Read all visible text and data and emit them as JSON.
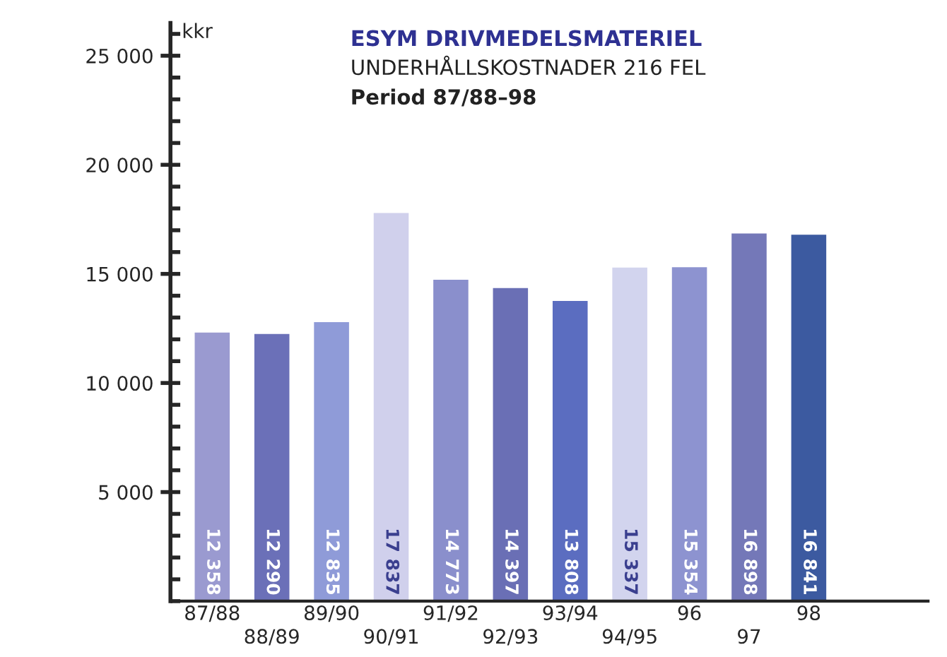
{
  "chart_data": {
    "type": "bar",
    "title": "ESYM DRIVMEDELSMATERIEL",
    "subtitle": "UNDERHÅLLSKOSTNADER 216 FEL",
    "annotations": [
      "Period 87/88–98"
    ],
    "ylabel": "kkr",
    "categories": [
      "87/88",
      "88/89",
      "89/90",
      "90/91",
      "91/92",
      "92/93",
      "93/94",
      "94/95",
      "96",
      "97",
      "98"
    ],
    "values": [
      12358,
      12290,
      12835,
      17837,
      14773,
      14397,
      13808,
      15337,
      15354,
      16898,
      16841
    ],
    "value_labels": [
      "12 358",
      "12 290",
      "12 835",
      "17 837",
      "14 773",
      "14 397",
      "13 808",
      "15 337",
      "15 354",
      "16 898",
      "16 841"
    ],
    "colors": [
      "#9a9ad0",
      "#6b70b8",
      "#8f9bd8",
      "#d0d0ec",
      "#8a8fcc",
      "#6a6fb5",
      "#5b6dc0",
      "#d2d4ee",
      "#8d93d0",
      "#7478b8",
      "#3c5aa0"
    ],
    "ylim": [
      0,
      26500
    ],
    "yticks": [
      {
        "value": 5000,
        "label": "5 000"
      },
      {
        "value": 10000,
        "label": "10 000"
      },
      {
        "value": 15000,
        "label": "15 000"
      },
      {
        "value": 20000,
        "label": "20 000"
      },
      {
        "value": 25000,
        "label": "25 000"
      }
    ],
    "grid": false,
    "legend": false
  }
}
